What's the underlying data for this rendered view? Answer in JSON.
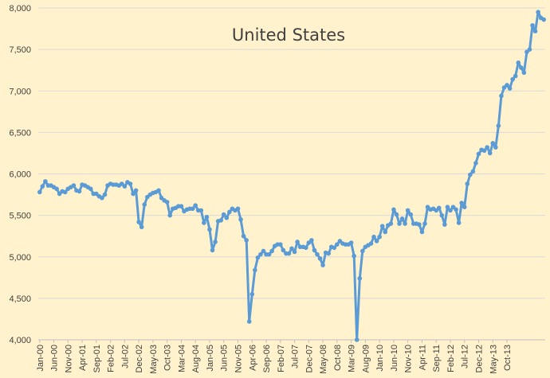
{
  "chart_data": {
    "type": "line",
    "title": "United States",
    "xlabel": "",
    "ylabel": "",
    "ylim": [
      4000,
      8000
    ],
    "yticks": [
      "4,000",
      "4,500",
      "5,000",
      "5,500",
      "6,000",
      "6,500",
      "7,000",
      "7,500",
      "8,000"
    ],
    "ytick_values": [
      4000,
      4500,
      5000,
      5500,
      6000,
      6500,
      7000,
      7500,
      8000
    ],
    "xtick_labels": [
      "Jan-00",
      "Jun-00",
      "Nov-00",
      "Apr-01",
      "Sep-01",
      "Feb-02",
      "Jul-02",
      "Dec-02",
      "May-03",
      "Oct-03",
      "Mar-04",
      "Aug-04",
      "Jan-05",
      "Jun-05",
      "Nov-05",
      "Apr-06",
      "Sep-06",
      "Feb-07",
      "Jul-07",
      "Dec-07",
      "May-08",
      "Oct-08",
      "Mar-09",
      "Aug-09",
      "Jan-10",
      "Jun-10",
      "Nov-10",
      "Apr-11",
      "Sep-11",
      "Feb-12",
      "Jul-12",
      "Dec-12",
      "May-13",
      "Oct-13"
    ],
    "x_start": "Jan-00",
    "x_end": "Jan-14",
    "grid": "horizontal",
    "legend": "none",
    "series_color": "#5B9BD5",
    "series": [
      {
        "values": [
          5780,
          5850,
          5910,
          5860,
          5860,
          5840,
          5820,
          5760,
          5790,
          5780,
          5820,
          5840,
          5860,
          5800,
          5790,
          5870,
          5860,
          5840,
          5820,
          5760,
          5760,
          5730,
          5710,
          5750,
          5860,
          5880,
          5870,
          5870,
          5860,
          5880,
          5850,
          5900,
          5880,
          5760,
          5800,
          5420,
          5360,
          5630,
          5720,
          5750,
          5770,
          5780,
          5800,
          5710,
          5680,
          5660,
          5500,
          5580,
          5590,
          5610,
          5610,
          5550,
          5570,
          5580,
          5580,
          5620,
          5560,
          5560,
          5410,
          5480,
          5330,
          5080,
          5180,
          5430,
          5440,
          5510,
          5470,
          5540,
          5580,
          5560,
          5580,
          5450,
          5250,
          5200,
          4220,
          4550,
          4840,
          4990,
          5030,
          5070,
          5030,
          5030,
          5070,
          5130,
          5150,
          5150,
          5080,
          5040,
          5040,
          5100,
          5060,
          5180,
          5120,
          5120,
          5110,
          5170,
          5200,
          5080,
          5030,
          4980,
          4900,
          5050,
          5040,
          5120,
          5110,
          5150,
          5190,
          5160,
          5150,
          5150,
          5170,
          5010,
          4000,
          4740,
          5070,
          5120,
          5140,
          5160,
          5240,
          5190,
          5240,
          5370,
          5300,
          5380,
          5400,
          5570,
          5510,
          5400,
          5460,
          5400,
          5560,
          5510,
          5400,
          5400,
          5390,
          5300,
          5400,
          5600,
          5570,
          5580,
          5560,
          5590,
          5500,
          5390,
          5600,
          5560,
          5600,
          5570,
          5410,
          5650,
          5600,
          5880,
          5990,
          6030,
          6130,
          6240,
          6290,
          6280,
          6320,
          6250,
          6370,
          6320,
          6580,
          6940,
          7040,
          7070,
          7030,
          7140,
          7180,
          7340,
          7280,
          7220,
          7470,
          7500,
          7790,
          7720,
          7950,
          7880,
          7860
        ]
      }
    ]
  }
}
